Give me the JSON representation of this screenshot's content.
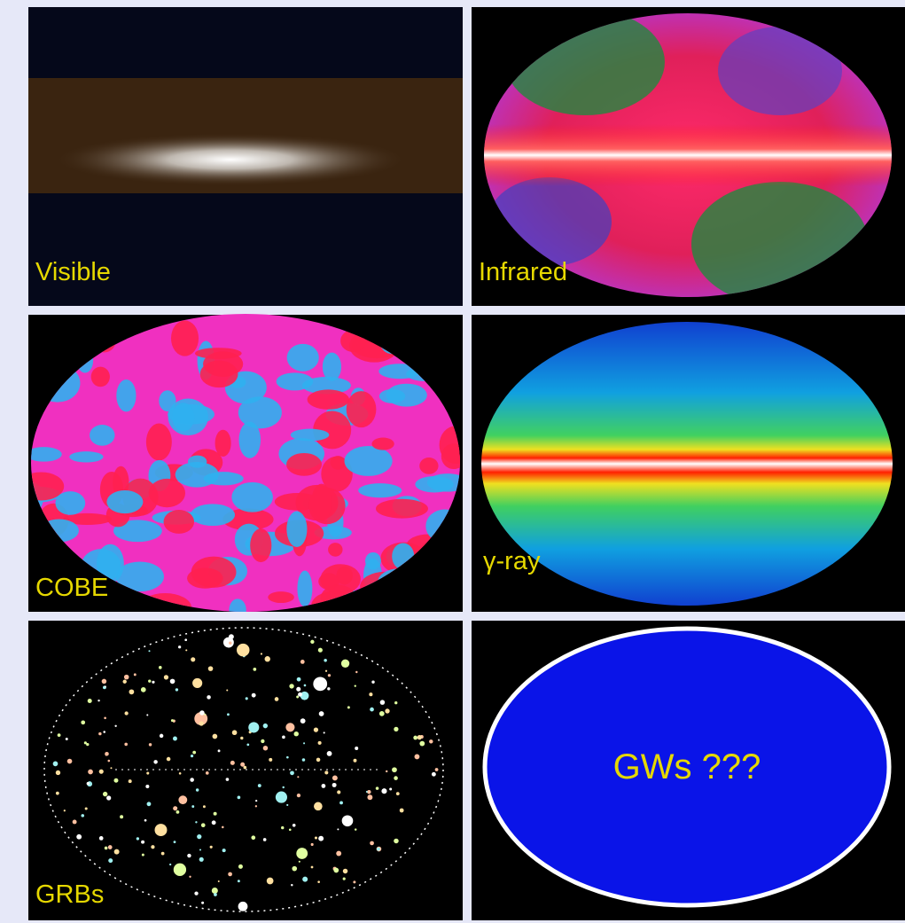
{
  "panels": [
    {
      "label": "Visible"
    },
    {
      "label": "Infrared"
    },
    {
      "label": "COBE"
    },
    {
      "label": "γ-ray"
    },
    {
      "label": "GRBs"
    },
    {
      "label": "GWs ???"
    }
  ]
}
